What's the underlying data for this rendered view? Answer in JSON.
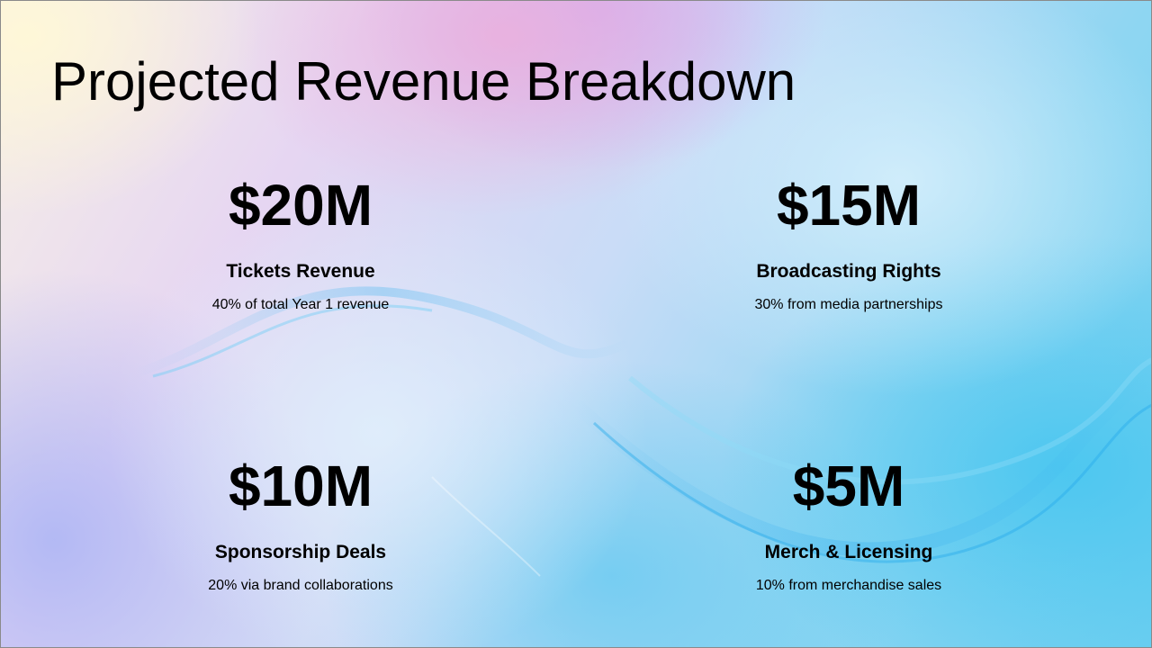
{
  "slide": {
    "title": "Projected Revenue Breakdown"
  },
  "cards": [
    {
      "value": "$20M",
      "label": "Tickets Revenue",
      "description": "40% of total Year 1 revenue"
    },
    {
      "value": "$15M",
      "label": "Broadcasting Rights",
      "description": "30% from media partnerships"
    },
    {
      "value": "$10M",
      "label": "Sponsorship Deals",
      "description": "20% via brand collaborations"
    },
    {
      "value": "$5M",
      "label": "Merch & Licensing",
      "description": "10% from merchandise sales"
    }
  ],
  "colors": {
    "text": "#000000",
    "background_light": "#f6efe6",
    "background_pink": "#ecafdc",
    "background_violet": "#cda5f0",
    "background_cyan": "#3cc3f0"
  }
}
